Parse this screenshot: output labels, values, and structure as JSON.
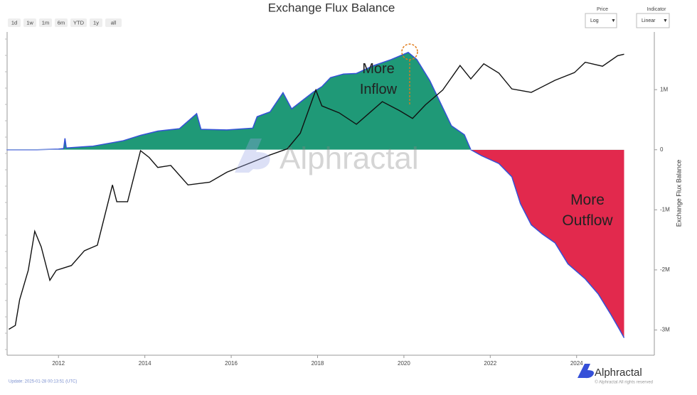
{
  "chart_data": {
    "type": "area-line",
    "title": "Exchange Flux Balance",
    "ylabel": "Exchange Flux Balance",
    "xlim": [
      2010.81,
      2025.8
    ],
    "xticks": [
      2012,
      2014,
      2016,
      2018,
      2020,
      2022,
      2024
    ],
    "ylim": [
      -3420000,
      1960000
    ],
    "yticks": [
      {
        "value": 1000000,
        "label": "1M"
      },
      0,
      {
        "value": -1000000,
        "label": "-1M"
      },
      {
        "value": -2000000,
        "label": "-2M"
      },
      {
        "value": -3000000,
        "label": "-3M"
      }
    ],
    "y2lim": [
      0.074,
      290000
    ],
    "y2_log": true,
    "series": [
      {
        "name": "Exchange Flux Balance",
        "kind": "area",
        "color": "#3550d8",
        "positive_color": "#1f9977",
        "negative_color": "#e2294d",
        "x": [
          2010.8,
          2011.5,
          2012.0,
          2012.12,
          2012.15,
          2012.18,
          2012.8,
          2013.5,
          2013.9,
          2014.3,
          2014.8,
          2015.2,
          2015.3,
          2015.9,
          2016.5,
          2016.6,
          2016.9,
          2017.2,
          2017.4,
          2017.9,
          2018.1,
          2018.3,
          2018.6,
          2018.9,
          2019.3,
          2019.7,
          2020.1,
          2020.3,
          2020.6,
          2020.9,
          2021.1,
          2021.4,
          2021.55,
          2021.8,
          2022.2,
          2022.5,
          2022.7,
          2022.95,
          2023.2,
          2023.5,
          2023.8,
          2024.2,
          2024.5,
          2024.8,
          2025.0,
          2025.1
        ],
        "values": [
          0,
          0,
          10000,
          20000,
          190000,
          30000,
          60000,
          150000,
          240000,
          310000,
          350000,
          600000,
          340000,
          330000,
          360000,
          550000,
          630000,
          950000,
          680000,
          960000,
          1050000,
          1200000,
          1260000,
          1270000,
          1400000,
          1500000,
          1620000,
          1500000,
          1150000,
          700000,
          400000,
          250000,
          0,
          -100000,
          -230000,
          -450000,
          -900000,
          -1250000,
          -1400000,
          -1550000,
          -1900000,
          -2150000,
          -2400000,
          -2750000,
          -3000000,
          -3130000
        ]
      },
      {
        "name": "Price",
        "kind": "line",
        "axis": "y2",
        "color": "#111111",
        "x": [
          2010.85,
          2011.0,
          2011.1,
          2011.3,
          2011.45,
          2011.6,
          2011.8,
          2011.95,
          2012.3,
          2012.6,
          2012.9,
          2013.25,
          2013.35,
          2013.6,
          2013.9,
          2014.1,
          2014.3,
          2014.6,
          2015.0,
          2015.5,
          2015.9,
          2016.5,
          2016.9,
          2017.3,
          2017.6,
          2017.96,
          2018.1,
          2018.5,
          2018.9,
          2019.5,
          2019.9,
          2020.2,
          2020.5,
          2020.9,
          2021.3,
          2021.55,
          2021.85,
          2022.2,
          2022.5,
          2022.95,
          2023.5,
          2023.95,
          2024.2,
          2024.6,
          2024.95,
          2025.1
        ],
        "values": [
          0.25,
          0.3,
          1,
          4,
          25,
          12,
          2.5,
          4,
          5,
          10,
          13,
          220,
          100,
          100,
          1100,
          800,
          500,
          550,
          220,
          250,
          400,
          650,
          900,
          1200,
          2500,
          19000,
          9000,
          6500,
          3800,
          11000,
          7200,
          5000,
          9500,
          19000,
          60000,
          32000,
          65000,
          42000,
          20000,
          17000,
          30000,
          43000,
          70000,
          58000,
          95000,
          102000
        ]
      }
    ],
    "annotations": [
      "More\nInflow",
      "More\nOutflow"
    ],
    "watermark": "Alphractal"
  },
  "controls": {
    "range_buttons": [
      "1d",
      "1w",
      "1m",
      "6m",
      "YTD",
      "1y",
      "all"
    ],
    "price_label": "Price",
    "price_value": "Log",
    "indicator_label": "Indicator",
    "indicator_value": "Linear"
  },
  "footer": {
    "update": "Update: 2025-01-28 00:13:51 (UTC)",
    "brand": "Alphractal",
    "rights": "© Alphractal All rights reserved"
  }
}
